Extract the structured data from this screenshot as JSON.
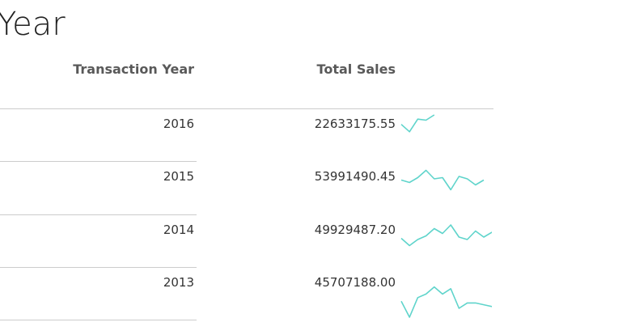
{
  "title": "Year",
  "columns": {
    "year_header": "Transaction Year",
    "sales_header": "Total Sales"
  },
  "colors": {
    "sparkline": "#5fd4cb",
    "rule": "#cccccc"
  },
  "rows": [
    {
      "year": "2016",
      "total_sales": "22633175.55",
      "trend": [
        0.55,
        0.2,
        0.8,
        0.75,
        1.0
      ]
    },
    {
      "year": "2015",
      "total_sales": "53991490.45",
      "trend": [
        0.55,
        0.45,
        0.65,
        0.95,
        0.6,
        0.65,
        0.15,
        0.7,
        0.6,
        0.35,
        0.55
      ]
    },
    {
      "year": "2014",
      "total_sales": "49929487.20",
      "trend": [
        0.35,
        0.05,
        0.3,
        0.45,
        0.75,
        0.55,
        0.9,
        0.4,
        0.3,
        0.65,
        0.4,
        0.6
      ]
    },
    {
      "year": "2013",
      "total_sales": "45707188.00",
      "trend": [
        0.45,
        0.0,
        0.55,
        0.65,
        0.85,
        0.65,
        0.8,
        0.25,
        0.4,
        0.4,
        0.35,
        0.3
      ]
    }
  ]
}
